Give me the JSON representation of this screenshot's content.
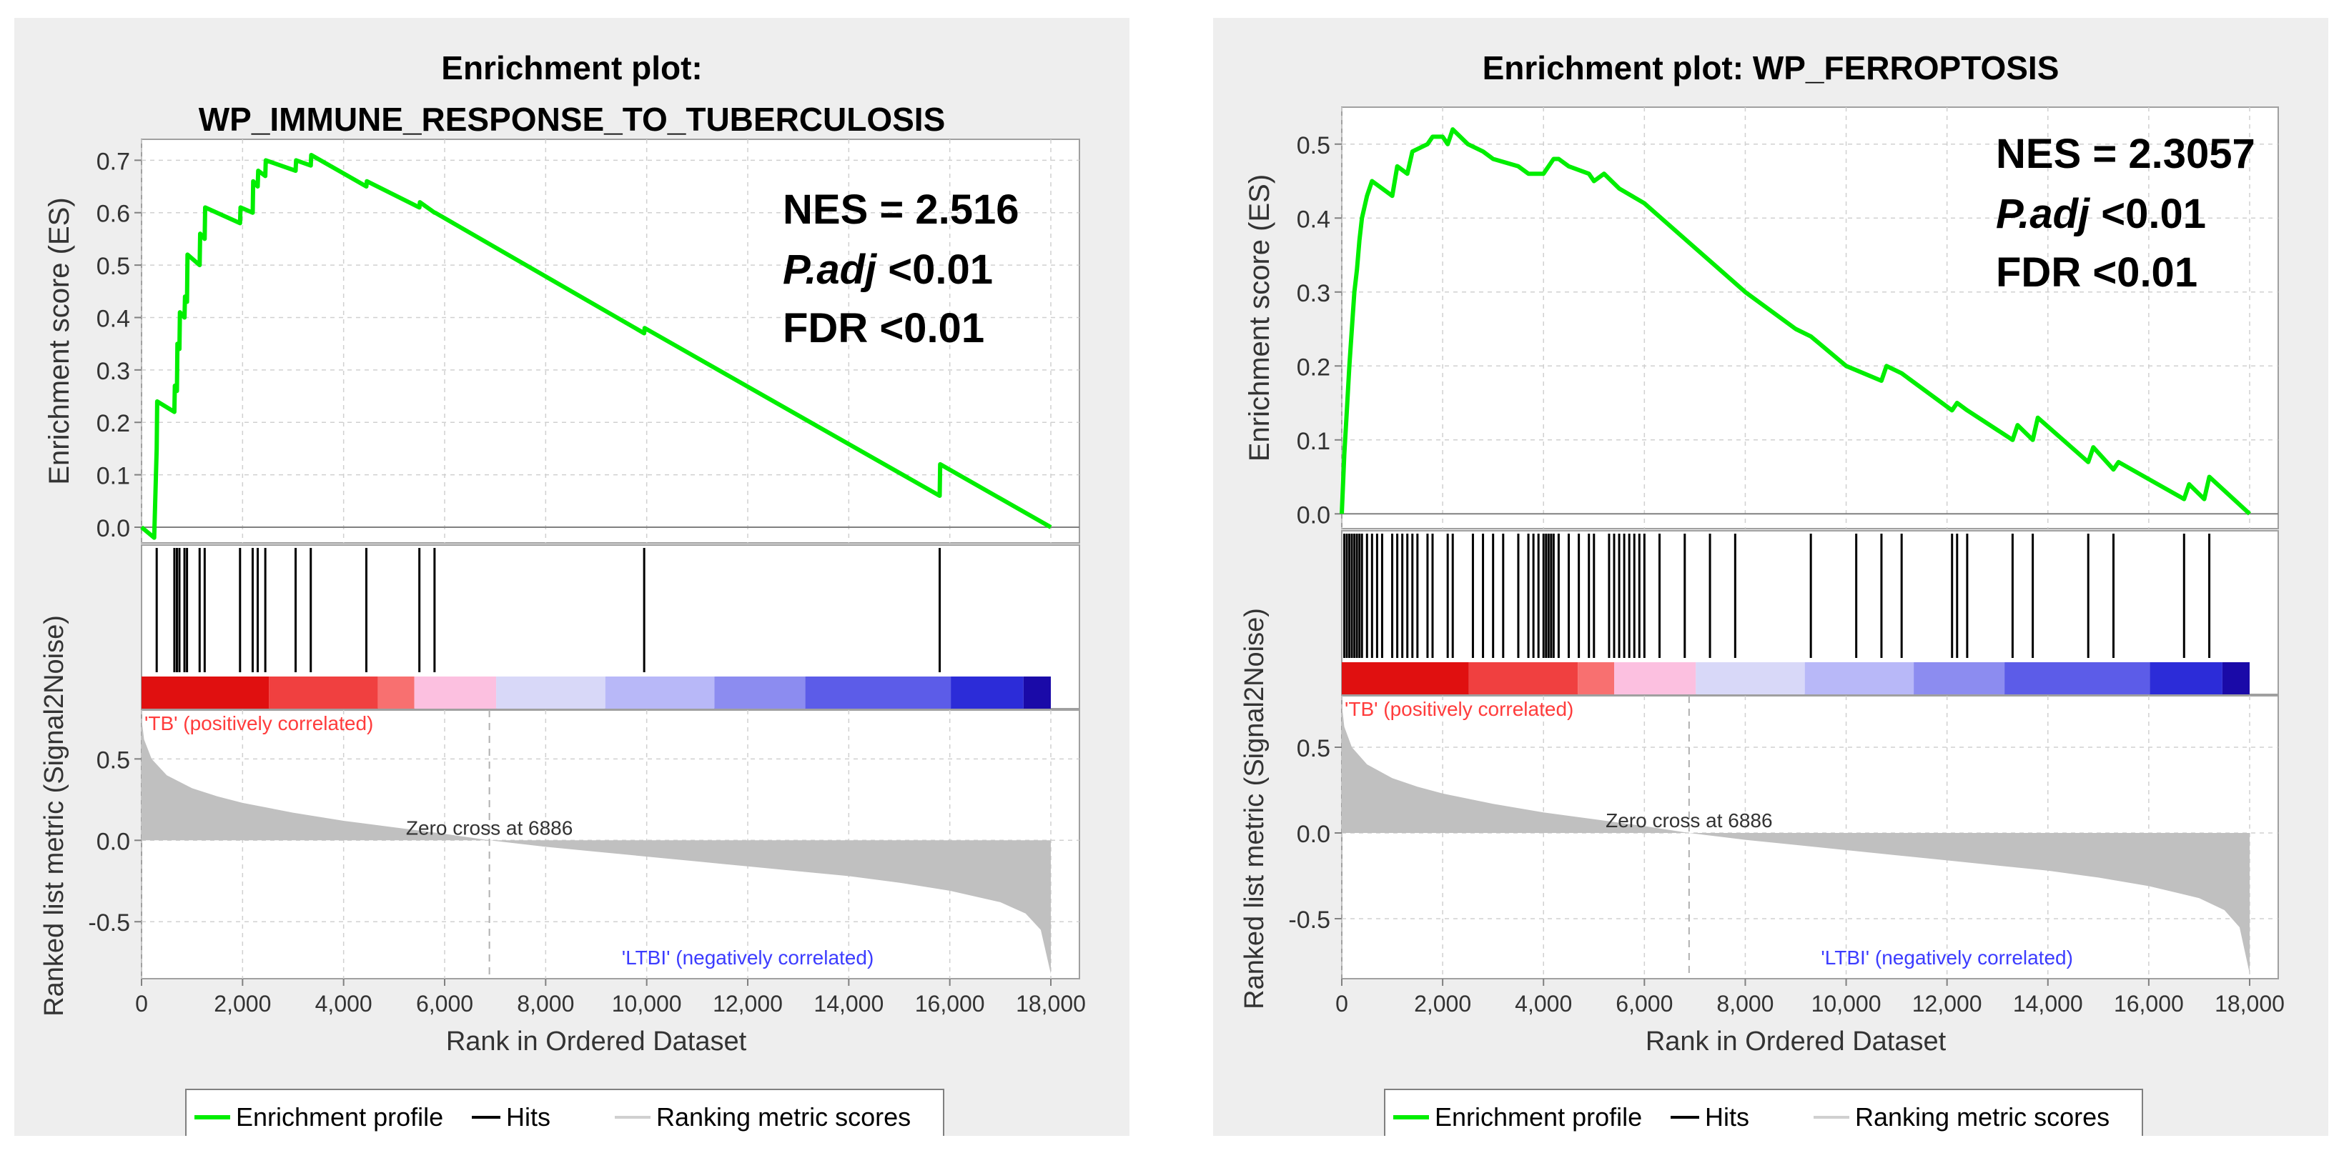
{
  "colors": {
    "profile": "#00ee00",
    "hits": "#000000",
    "metric": "#c0c0c0",
    "pos_label": "#ff3c3c",
    "neg_label": "#3c3cff",
    "bar_gradient": [
      "#e01010",
      "#f04040",
      "#f87070",
      "#fcc0e0",
      "#d8d8f8",
      "#b8b8f8",
      "#8c8cf0",
      "#5c5ce8",
      "#2c2cd8",
      "#1a0aa8"
    ]
  },
  "legend": {
    "profile": "Enrichment profile",
    "hits": "Hits",
    "metric": "Ranking metric scores"
  },
  "chart_data": [
    {
      "type": "line",
      "title_lines": [
        "Enrichment plot:",
        "WP_IMMUNE_RESPONSE_TO_TUBERCULOSIS"
      ],
      "stats": {
        "nes": "NES = 2.516",
        "padj_label": "P.adj",
        "padj_value": " <0.01",
        "fdr": "FDR <0.01"
      },
      "ylabel": "Enrichment score (ES)",
      "ylabel2": "Ranked list metric (Signal2Noise)",
      "xlabel": "Rank in Ordered Dataset",
      "xlim": [
        0,
        18000
      ],
      "es_ylim": [
        -0.03,
        0.74
      ],
      "es_yticks": [
        0.0,
        0.1,
        0.2,
        0.3,
        0.4,
        0.5,
        0.6,
        0.7
      ],
      "es_ytick_labels": [
        "0.0",
        "0.1",
        "0.2",
        "0.3",
        "0.4",
        "0.5",
        "0.6",
        "0.7"
      ],
      "xticks": [
        0,
        2000,
        4000,
        6000,
        8000,
        10000,
        12000,
        14000,
        16000,
        18000
      ],
      "xtick_labels": [
        "0",
        "2,000",
        "4,000",
        "6,000",
        "8,000",
        "10,000",
        "12,000",
        "14,000",
        "16,000",
        "18,000"
      ],
      "metric_ylim": [
        -0.85,
        0.8
      ],
      "metric_yticks": [
        0.5,
        0.0,
        -0.5
      ],
      "metric_ytick_labels": [
        "0.5",
        "0.0",
        "-0.5"
      ],
      "es_profile": {
        "x": [
          0,
          250,
          300,
          310,
          650,
          660,
          700,
          710,
          750,
          760,
          850,
          860,
          900,
          910,
          1150,
          1160,
          1250,
          1260,
          1950,
          1960,
          2200,
          2210,
          2300,
          2310,
          2450,
          2460,
          3050,
          3060,
          3350,
          3360,
          4450,
          4460,
          5500,
          5510,
          5800,
          5810,
          9950,
          9960,
          15800,
          15810,
          18000
        ],
        "y": [
          0.0,
          -0.02,
          0.15,
          0.24,
          0.22,
          0.27,
          0.26,
          0.35,
          0.34,
          0.41,
          0.4,
          0.44,
          0.43,
          0.52,
          0.5,
          0.56,
          0.55,
          0.61,
          0.58,
          0.61,
          0.6,
          0.66,
          0.65,
          0.68,
          0.67,
          0.7,
          0.68,
          0.7,
          0.69,
          0.71,
          0.65,
          0.66,
          0.61,
          0.62,
          0.6,
          0.6,
          0.37,
          0.38,
          0.06,
          0.12,
          0.0
        ]
      },
      "hits": [
        300,
        650,
        700,
        750,
        850,
        900,
        1150,
        1250,
        1950,
        2200,
        2300,
        2450,
        3050,
        3350,
        4450,
        5500,
        5800,
        9950,
        15800
      ],
      "zero_cross": 6886,
      "zero_cross_label": "Zero cross at 6886",
      "pos_label": "'TB' (positively correlated)",
      "neg_label": "'LTBI' (negatively correlated)",
      "metric_curve": {
        "x": [
          0,
          50,
          200,
          500,
          1000,
          1500,
          2000,
          3000,
          4000,
          5000,
          6000,
          6886,
          8000,
          9000,
          10000,
          11000,
          12000,
          13000,
          14000,
          15000,
          16000,
          17000,
          17500,
          17800,
          18000
        ],
        "y": [
          0.75,
          0.62,
          0.5,
          0.4,
          0.32,
          0.27,
          0.23,
          0.17,
          0.12,
          0.08,
          0.04,
          0.0,
          -0.04,
          -0.07,
          -0.1,
          -0.13,
          -0.16,
          -0.19,
          -0.22,
          -0.26,
          -0.31,
          -0.38,
          -0.45,
          -0.55,
          -0.82
        ]
      }
    },
    {
      "type": "line",
      "title_lines": [
        "Enrichment plot: WP_FERROPTOSIS"
      ],
      "stats": {
        "nes": "NES = 2.3057",
        "padj_label": "P.adj",
        "padj_value": " <0.01",
        "fdr": "FDR <0.01"
      },
      "ylabel": "Enrichment score (ES)",
      "ylabel2": "Ranked list metric (Signal2Noise)",
      "xlabel": "Rank in Ordered Dataset",
      "xlim": [
        0,
        18000
      ],
      "es_ylim": [
        -0.02,
        0.55
      ],
      "es_yticks": [
        0.0,
        0.1,
        0.2,
        0.3,
        0.4,
        0.5
      ],
      "es_ytick_labels": [
        "0.0",
        "0.1",
        "0.2",
        "0.3",
        "0.4",
        "0.5"
      ],
      "xticks": [
        0,
        2000,
        4000,
        6000,
        8000,
        10000,
        12000,
        14000,
        16000,
        18000
      ],
      "xtick_labels": [
        "0",
        "2,000",
        "4,000",
        "6,000",
        "8,000",
        "10,000",
        "12,000",
        "14,000",
        "16,000",
        "18,000"
      ],
      "metric_ylim": [
        -0.85,
        0.8
      ],
      "metric_yticks": [
        0.5,
        0.0,
        -0.5
      ],
      "metric_ytick_labels": [
        "0.5",
        "0.0",
        "-0.5"
      ],
      "es_profile": {
        "x": [
          0,
          50,
          100,
          150,
          200,
          250,
          300,
          350,
          400,
          500,
          600,
          1000,
          1100,
          1300,
          1400,
          1700,
          1800,
          2000,
          2100,
          2200,
          2500,
          2800,
          3000,
          3500,
          3700,
          4000,
          4100,
          4200,
          4300,
          4500,
          4900,
          5000,
          5200,
          5500,
          6000,
          7000,
          8000,
          9000,
          9300,
          10000,
          10700,
          10800,
          11100,
          12100,
          12200,
          12400,
          13300,
          13400,
          13700,
          13800,
          14800,
          14900,
          15300,
          15400,
          16700,
          16800,
          17100,
          17200,
          18000
        ],
        "y": [
          0.0,
          0.08,
          0.14,
          0.2,
          0.25,
          0.3,
          0.33,
          0.37,
          0.4,
          0.43,
          0.45,
          0.43,
          0.47,
          0.46,
          0.49,
          0.5,
          0.51,
          0.51,
          0.5,
          0.52,
          0.5,
          0.49,
          0.48,
          0.47,
          0.46,
          0.46,
          0.47,
          0.48,
          0.48,
          0.47,
          0.46,
          0.45,
          0.46,
          0.44,
          0.42,
          0.36,
          0.3,
          0.25,
          0.24,
          0.2,
          0.18,
          0.2,
          0.19,
          0.14,
          0.15,
          0.14,
          0.1,
          0.12,
          0.1,
          0.13,
          0.07,
          0.09,
          0.06,
          0.07,
          0.02,
          0.04,
          0.02,
          0.05,
          0.0
        ]
      },
      "hits": [
        50,
        100,
        150,
        200,
        250,
        300,
        350,
        400,
        500,
        600,
        700,
        800,
        1000,
        1100,
        1200,
        1300,
        1400,
        1500,
        1700,
        1800,
        2100,
        2200,
        2600,
        2800,
        3000,
        3200,
        3500,
        3700,
        3800,
        3900,
        4000,
        4050,
        4100,
        4150,
        4200,
        4300,
        4500,
        4700,
        4900,
        5000,
        5300,
        5400,
        5500,
        5600,
        5700,
        5800,
        5900,
        6000,
        6300,
        6800,
        7300,
        7800,
        9300,
        10200,
        10700,
        11100,
        12100,
        12200,
        12400,
        13300,
        13700,
        14800,
        15300,
        16700,
        17200
      ],
      "zero_cross": 6886,
      "zero_cross_label": "Zero cross at 6886",
      "pos_label": "'TB' (positively correlated)",
      "neg_label": "'LTBI' (negatively correlated)",
      "metric_curve": {
        "x": [
          0,
          50,
          200,
          500,
          1000,
          1500,
          2000,
          3000,
          4000,
          5000,
          6000,
          6886,
          8000,
          9000,
          10000,
          11000,
          12000,
          13000,
          14000,
          15000,
          16000,
          17000,
          17500,
          17800,
          18000
        ],
        "y": [
          0.75,
          0.62,
          0.5,
          0.4,
          0.32,
          0.27,
          0.23,
          0.17,
          0.12,
          0.08,
          0.04,
          0.0,
          -0.04,
          -0.07,
          -0.1,
          -0.13,
          -0.16,
          -0.19,
          -0.22,
          -0.26,
          -0.31,
          -0.38,
          -0.45,
          -0.55,
          -0.82
        ]
      }
    }
  ]
}
